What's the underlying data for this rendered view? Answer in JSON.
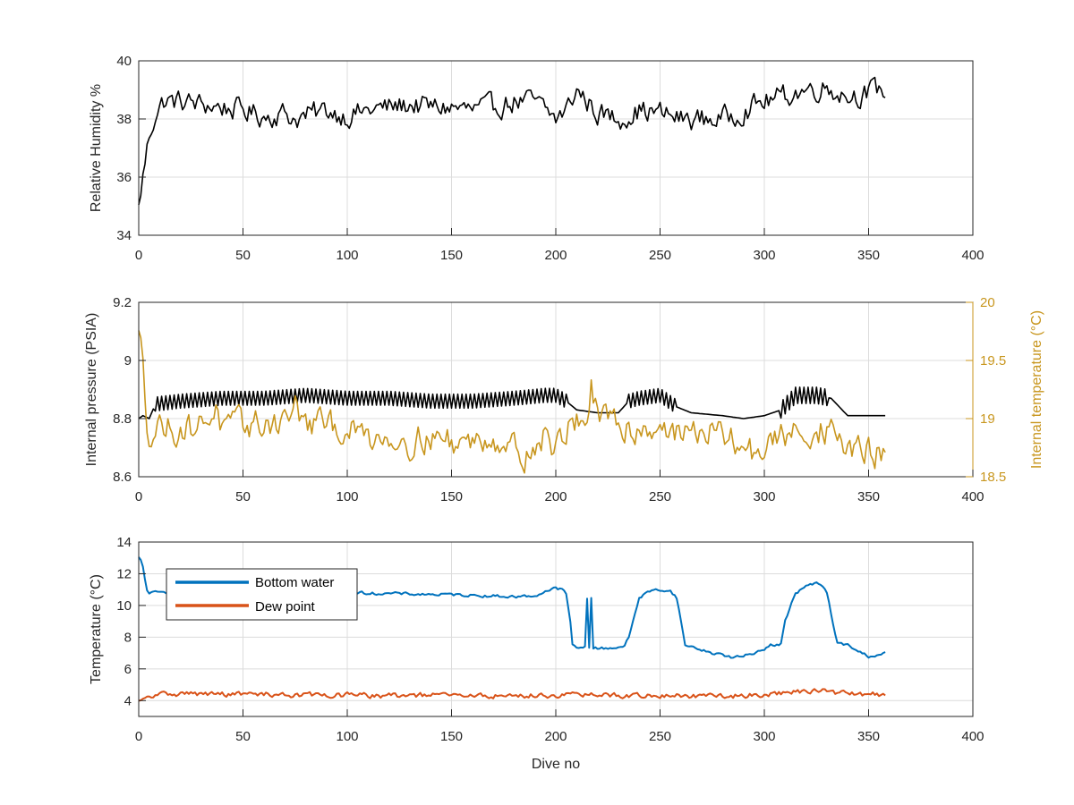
{
  "chart_data": [
    {
      "type": "line",
      "title": "",
      "xlabel": "",
      "ylabel": "Relative Humidity %",
      "xlim": [
        0,
        400
      ],
      "ylim": [
        34,
        40
      ],
      "xticks": [
        "0",
        "50",
        "100",
        "150",
        "200",
        "250",
        "300",
        "350",
        "400"
      ],
      "yticks": [
        "34",
        "36",
        "38",
        "40"
      ],
      "grid": true,
      "series": [
        {
          "color": "#000000",
          "x": [
            0,
            1,
            2,
            3,
            5,
            8,
            12,
            20,
            30,
            40,
            50,
            60,
            70,
            75,
            80,
            90,
            100,
            110,
            120,
            130,
            140,
            150,
            160,
            170,
            180,
            190,
            200,
            205,
            210,
            215,
            220,
            230,
            240,
            250,
            260,
            270,
            280,
            290,
            300,
            310,
            320,
            330,
            340,
            350,
            355,
            358
          ],
          "y": [
            34.9,
            35.5,
            36.0,
            36.5,
            37.4,
            38.2,
            38.6,
            38.6,
            38.5,
            38.4,
            38.3,
            38.1,
            38.2,
            38.0,
            38.1,
            38.3,
            38.1,
            38.3,
            38.4,
            38.5,
            38.4,
            38.4,
            38.3,
            38.4,
            38.6,
            38.6,
            38.0,
            38.3,
            39.0,
            38.6,
            38.2,
            38.0,
            38.3,
            38.2,
            38.0,
            38.0,
            38.0,
            38.3,
            38.6,
            38.8,
            39.0,
            39.1,
            38.8,
            38.9,
            39.0,
            39.0
          ],
          "jitter": 0.34
        }
      ]
    },
    {
      "type": "line",
      "title": "",
      "xlabel": "",
      "ylabel": "Internal pressure (PSIA)",
      "ylabel_right": "Internal temperature (°C)",
      "xlim": [
        0,
        400
      ],
      "ylim": [
        8.6,
        9.2
      ],
      "ylim_right": [
        18.5,
        20
      ],
      "xticks": [
        "0",
        "50",
        "100",
        "150",
        "200",
        "250",
        "300",
        "350",
        "400"
      ],
      "yticks": [
        "8.6",
        "8.8",
        "9",
        "9.2"
      ],
      "yticks_right": [
        "18.5",
        "19",
        "19.5",
        "20"
      ],
      "right_axis_color": "#c8961e",
      "grid": true,
      "series": [
        {
          "axis": "left",
          "color": "#000000",
          "x": [
            0,
            2,
            5,
            8,
            20,
            40,
            60,
            80,
            100,
            120,
            140,
            160,
            180,
            195,
            200,
            205,
            210,
            220,
            230,
            235,
            240,
            250,
            258,
            265,
            280,
            290,
            300,
            308,
            315,
            325,
            332,
            340,
            358
          ],
          "y": [
            8.8,
            8.81,
            8.8,
            8.85,
            8.86,
            8.87,
            8.87,
            8.88,
            8.87,
            8.87,
            8.86,
            8.86,
            8.87,
            8.88,
            8.88,
            8.86,
            8.83,
            8.82,
            8.82,
            8.86,
            8.87,
            8.88,
            8.84,
            8.82,
            8.81,
            8.8,
            8.81,
            8.83,
            8.88,
            8.88,
            8.87,
            8.81,
            8.81
          ],
          "jitter_ranges": [
            [
              8,
              205,
              0.03
            ],
            [
              235,
              257,
              0.03
            ],
            [
              308,
              330,
              0.035
            ]
          ]
        },
        {
          "axis": "right",
          "color": "#c8961e",
          "x": [
            0,
            2,
            4,
            6,
            10,
            20,
            30,
            37,
            40,
            50,
            60,
            70,
            75,
            80,
            90,
            100,
            110,
            120,
            130,
            140,
            150,
            160,
            170,
            180,
            185,
            190,
            195,
            200,
            205,
            210,
            215,
            217,
            220,
            230,
            240,
            250,
            260,
            270,
            280,
            290,
            295,
            300,
            310,
            320,
            330,
            340,
            350,
            358
          ],
          "y": [
            19.7,
            19.5,
            19.0,
            18.85,
            18.95,
            18.9,
            18.95,
            19.1,
            18.9,
            18.95,
            18.95,
            19.0,
            19.1,
            18.95,
            18.95,
            18.9,
            18.85,
            18.85,
            18.8,
            18.85,
            18.8,
            18.8,
            18.85,
            18.75,
            18.7,
            18.75,
            18.85,
            18.75,
            18.9,
            19.0,
            19.0,
            19.25,
            19.0,
            18.95,
            18.9,
            18.95,
            18.85,
            18.9,
            18.85,
            18.75,
            18.7,
            18.75,
            18.85,
            18.9,
            18.9,
            18.75,
            18.7,
            18.7
          ],
          "jitter": 0.11
        }
      ]
    },
    {
      "type": "line",
      "title": "",
      "xlabel": "Dive no",
      "ylabel": "Temperature (°C)",
      "xlim": [
        0,
        400
      ],
      "ylim": [
        3,
        14
      ],
      "xticks": [
        "0",
        "50",
        "100",
        "150",
        "200",
        "250",
        "300",
        "350",
        "400"
      ],
      "yticks": [
        "4",
        "6",
        "8",
        "10",
        "12",
        "14"
      ],
      "grid": true,
      "legend": "top-left",
      "series": [
        {
          "name": "Bottom water",
          "color": "#0072bd",
          "x": [
            0,
            1,
            2,
            3,
            4,
            5,
            6,
            10,
            20,
            30,
            40,
            60,
            80,
            100,
            120,
            140,
            160,
            180,
            190,
            195,
            198,
            200,
            203,
            205,
            207,
            208,
            210,
            212,
            214,
            215,
            216,
            217,
            218,
            219,
            220,
            225,
            230,
            233,
            235,
            238,
            240,
            245,
            250,
            255,
            258,
            260,
            262,
            265,
            270,
            275,
            280,
            285,
            290,
            295,
            300,
            303,
            305,
            308,
            310,
            315,
            320,
            325,
            328,
            330,
            332,
            335,
            340,
            345,
            350,
            355,
            358
          ],
          "y": [
            13.0,
            12.8,
            12.4,
            11.6,
            11.0,
            10.8,
            10.8,
            10.8,
            10.9,
            10.9,
            10.85,
            10.9,
            10.8,
            10.8,
            10.75,
            10.7,
            10.65,
            10.55,
            10.6,
            10.9,
            11.0,
            11.1,
            11.0,
            10.7,
            9.0,
            7.5,
            7.3,
            7.3,
            7.4,
            10.5,
            7.4,
            10.5,
            7.3,
            7.3,
            7.3,
            7.3,
            7.4,
            7.4,
            8.0,
            9.5,
            10.5,
            10.9,
            11.0,
            10.9,
            10.5,
            9.0,
            7.5,
            7.4,
            7.2,
            7.0,
            6.9,
            6.7,
            6.8,
            7.0,
            7.3,
            7.5,
            7.5,
            7.6,
            9.0,
            10.8,
            11.2,
            11.4,
            11.2,
            10.8,
            9.5,
            7.6,
            7.5,
            7.1,
            6.8,
            6.9,
            7.0
          ],
          "jitter": 0.08
        },
        {
          "name": "Dew point",
          "color": "#d95319",
          "x": [
            0,
            2,
            5,
            10,
            20,
            40,
            60,
            80,
            100,
            120,
            140,
            160,
            180,
            200,
            220,
            240,
            260,
            280,
            300,
            320,
            330,
            340,
            358
          ],
          "y": [
            3.9,
            4.0,
            4.2,
            4.4,
            4.45,
            4.4,
            4.4,
            4.35,
            4.35,
            4.3,
            4.35,
            4.3,
            4.3,
            4.35,
            4.35,
            4.3,
            4.3,
            4.25,
            4.4,
            4.6,
            4.6,
            4.4,
            4.4
          ],
          "jitter": 0.14
        }
      ]
    }
  ]
}
